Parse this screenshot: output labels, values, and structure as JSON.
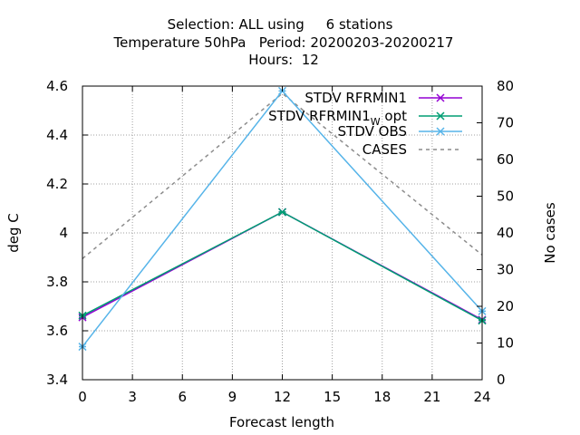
{
  "chart_data": {
    "type": "line",
    "title_lines": [
      "Selection: ALL using     6 stations",
      "Temperature 50hPa   Period: 20200203-20200217",
      "Hours:  12"
    ],
    "xlabel": "Forecast length",
    "ylabel": "deg C",
    "y2label": "No cases",
    "xlim": [
      0,
      24
    ],
    "ylim": [
      3.4,
      4.6
    ],
    "y2lim": [
      0,
      80
    ],
    "xticks": [
      0,
      3,
      6,
      9,
      12,
      15,
      18,
      21,
      24
    ],
    "yticks": [
      3.4,
      3.6,
      3.8,
      4,
      4.2,
      4.4,
      4.6
    ],
    "y2ticks": [
      0,
      10,
      20,
      30,
      40,
      50,
      60,
      70,
      80
    ],
    "xtick_labels": [
      "0",
      "3",
      "6",
      "9",
      "12",
      "15",
      "18",
      "21",
      "24"
    ],
    "ytick_labels": [
      "3.4",
      "3.6",
      "3.8",
      "4",
      "4.2",
      "4.4",
      "4.6"
    ],
    "y2tick_labels": [
      "0",
      "10",
      "20",
      "30",
      "40",
      "50",
      "60",
      "70",
      "80"
    ],
    "grid": true,
    "legend_position": "top-right",
    "series": [
      {
        "name": "STDV RFRMIN1",
        "axis": "y",
        "color": "#9400d3",
        "style": "solid",
        "marker": "x",
        "x": [
          0,
          12,
          24
        ],
        "y": [
          3.655,
          4.085,
          3.645
        ]
      },
      {
        "name_main": "STDV RFRMIN1",
        "name_sub": "W",
        "name_tail": " opt",
        "axis": "y",
        "color": "#009e73",
        "style": "solid",
        "marker": "x",
        "x": [
          0,
          12,
          24
        ],
        "y": [
          3.662,
          4.085,
          3.642
        ]
      },
      {
        "name": "STDV OBS",
        "axis": "y",
        "color": "#56b4e9",
        "style": "solid",
        "marker": "x",
        "x": [
          0,
          12,
          24
        ],
        "y": [
          3.535,
          4.58,
          3.68
        ]
      },
      {
        "name": "CASES",
        "axis": "y2",
        "color": "#8c8c8c",
        "style": "dashed",
        "marker": "none",
        "x": [
          0,
          12,
          24
        ],
        "y": [
          33,
          78,
          34
        ]
      }
    ]
  }
}
